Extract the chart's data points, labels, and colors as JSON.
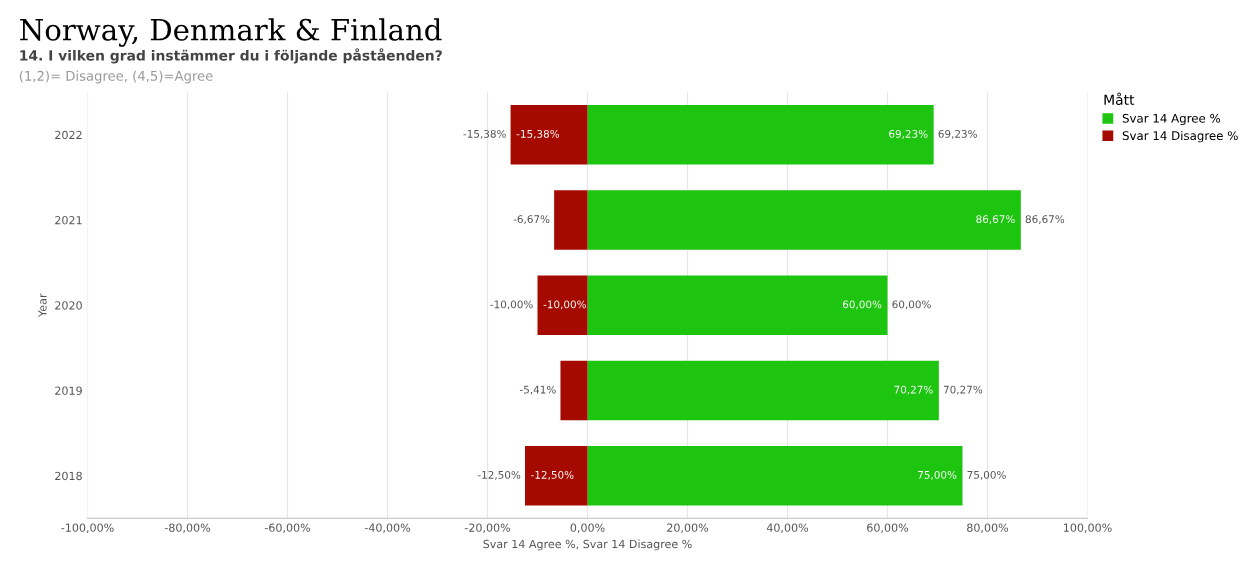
{
  "chart_data": {
    "type": "bar",
    "orientation": "horizontal",
    "title": "Norway, Denmark & Finland",
    "subtitle": "14. I vilken grad instämmer du i följande påståenden?",
    "annotations": [
      "(1,2)= Disagree, (4,5)=Agree",
      {
        "text": "-15,38%",
        "x": -15.38,
        "y": "2022"
      },
      {
        "text": "-10,00%",
        "x": -10.0,
        "y": "2020"
      },
      {
        "text": "-12,50%",
        "x": -12.5,
        "y": "2018"
      },
      {
        "text": "69,23%",
        "x": 69.23,
        "y": "2022"
      },
      {
        "text": "86,67%",
        "x": 86.67,
        "y": "2021"
      },
      {
        "text": "60,00%",
        "x": 60.0,
        "y": "2020"
      },
      {
        "text": "70,27%",
        "x": 70.27,
        "y": "2019"
      },
      {
        "text": "75,00%",
        "x": 75.0,
        "y": "2018"
      }
    ],
    "stacked": true,
    "xlabel": "Svar 14 Agree %, Svar 14 Disagree %",
    "ylabel": "Year",
    "legend_title": "Mått",
    "categories": [
      "2022",
      "2021",
      "2020",
      "2019",
      "2018"
    ],
    "series": [
      {
        "name": "Svar 14 Agree %",
        "color": "#1ec510",
        "values": [
          69.23,
          86.67,
          60.0,
          70.27,
          75.0
        ],
        "value_labels": [
          "69,23%",
          "86,67%",
          "60,00%",
          "70,27%",
          "75,00%"
        ]
      },
      {
        "name": "Svar 14 Disagree %",
        "color": "#a50a00",
        "values": [
          -15.38,
          -6.67,
          -10.0,
          -5.41,
          -12.5
        ],
        "value_labels": [
          "-15,38%",
          "-6,67%",
          "-10,00%",
          "-5,41%",
          "-12,50%"
        ]
      }
    ],
    "xlim": [
      -100,
      100
    ],
    "xticks": [
      {
        "value": -100,
        "label": "-100,00%"
      },
      {
        "value": -80,
        "label": "-80,00%"
      },
      {
        "value": -60,
        "label": "-60,00%"
      },
      {
        "value": -40,
        "label": "-40,00%"
      },
      {
        "value": -20,
        "label": "-20,00%"
      },
      {
        "value": 0,
        "label": "0,00%"
      },
      {
        "value": 20,
        "label": "20,00%"
      },
      {
        "value": 40,
        "label": "40,00%"
      },
      {
        "value": 60,
        "label": "60,00%"
      },
      {
        "value": 80,
        "label": "80,00%"
      },
      {
        "value": 100,
        "label": "100,00%"
      }
    ],
    "grid": "x",
    "legend": "right"
  }
}
